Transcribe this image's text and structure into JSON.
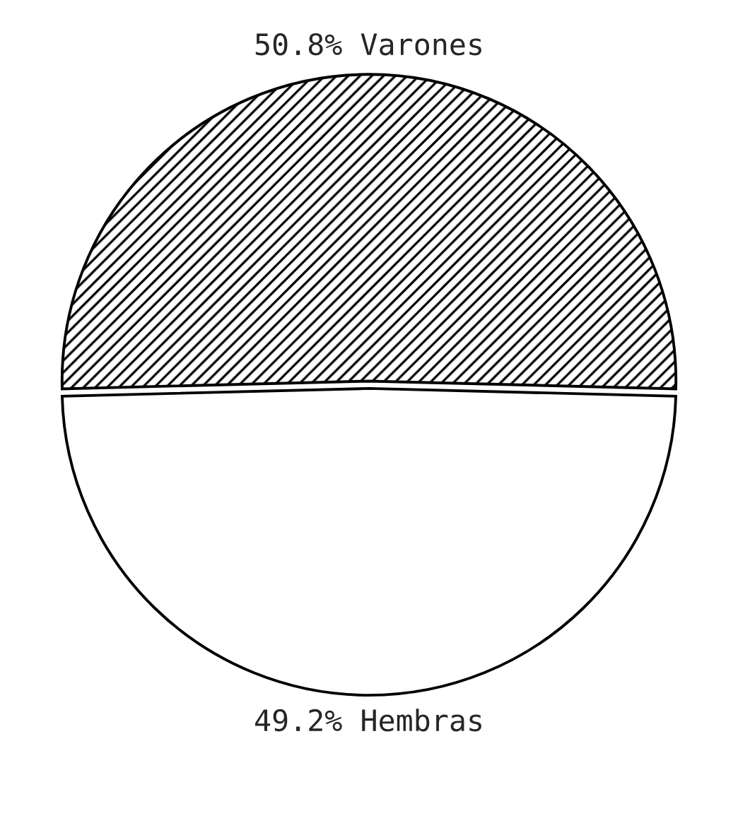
{
  "chart_data": {
    "type": "pie",
    "categories": [
      "Varones",
      "Hembras"
    ],
    "values": [
      50.8,
      49.2
    ],
    "colors": [
      "#000000",
      "#ffffff"
    ],
    "value_labels": [
      "50.8%",
      "49.2%"
    ]
  }
}
